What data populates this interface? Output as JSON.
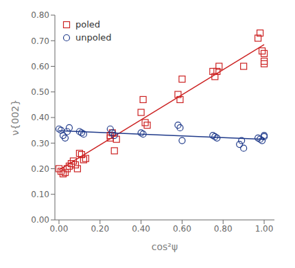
{
  "chart_data": {
    "type": "scatter",
    "xlabel": "cos²ψ",
    "ylabel": "ν{002}",
    "xlim": [
      -0.02,
      1.05
    ],
    "ylim": [
      0.0,
      0.8
    ],
    "xticks": [
      {
        "value": 0.0,
        "label": "0.00"
      },
      {
        "value": 0.2,
        "label": "0.20"
      },
      {
        "value": 0.4,
        "label": "0.40"
      },
      {
        "value": 0.6,
        "label": "0.60"
      },
      {
        "value": 0.8,
        "label": "0.80"
      },
      {
        "value": 1.0,
        "label": "1.00"
      }
    ],
    "yticks": [
      {
        "value": 0.0,
        "label": "0.00"
      },
      {
        "value": 0.1,
        "label": "0.10"
      },
      {
        "value": 0.2,
        "label": "0.20"
      },
      {
        "value": 0.3,
        "label": "0.30"
      },
      {
        "value": 0.4,
        "label": "0.40"
      },
      {
        "value": 0.5,
        "label": "0.50"
      },
      {
        "value": 0.6,
        "label": "0.60"
      },
      {
        "value": 0.7,
        "label": "0.70"
      },
      {
        "value": 0.8,
        "label": "0.80"
      }
    ],
    "grid": false,
    "legend": "upper left",
    "series": [
      {
        "type": "line",
        "color": "#CC2222",
        "x": [
          0.0,
          1.0
        ],
        "values": [
          0.195,
          0.685
        ]
      },
      {
        "type": "line",
        "color": "#1F3A8A",
        "x": [
          0.0,
          1.0
        ],
        "values": [
          0.348,
          0.315
        ]
      },
      {
        "type": "scatter",
        "name": "poled",
        "color": "#CC2222",
        "marker": "square",
        "x": [
          0.0,
          0.01,
          0.02,
          0.03,
          0.04,
          0.05,
          0.06,
          0.07,
          0.08,
          0.09,
          0.1,
          0.11,
          0.12,
          0.13,
          0.25,
          0.25,
          0.26,
          0.27,
          0.28,
          0.4,
          0.41,
          0.42,
          0.43,
          0.58,
          0.59,
          0.6,
          0.75,
          0.76,
          0.77,
          0.78,
          0.9,
          0.97,
          0.98,
          0.99,
          1.0,
          1.0,
          1.0
        ],
        "values": [
          0.2,
          0.19,
          0.18,
          0.185,
          0.2,
          0.21,
          0.22,
          0.23,
          0.215,
          0.2,
          0.26,
          0.255,
          0.235,
          0.24,
          0.32,
          0.33,
          0.34,
          0.27,
          0.315,
          0.42,
          0.47,
          0.38,
          0.37,
          0.49,
          0.47,
          0.55,
          0.58,
          0.56,
          0.58,
          0.6,
          0.6,
          0.71,
          0.73,
          0.66,
          0.65,
          0.62,
          0.61
        ]
      },
      {
        "type": "scatter",
        "name": "unpoled",
        "color": "#1F3A8A",
        "marker": "circle",
        "x": [
          0.0,
          0.01,
          0.02,
          0.03,
          0.04,
          0.05,
          0.1,
          0.11,
          0.12,
          0.25,
          0.26,
          0.27,
          0.4,
          0.41,
          0.58,
          0.59,
          0.6,
          0.75,
          0.76,
          0.77,
          0.88,
          0.89,
          0.9,
          0.97,
          0.98,
          0.99,
          1.0,
          1.0
        ],
        "values": [
          0.355,
          0.35,
          0.33,
          0.32,
          0.345,
          0.36,
          0.345,
          0.34,
          0.335,
          0.355,
          0.34,
          0.33,
          0.34,
          0.335,
          0.37,
          0.36,
          0.31,
          0.33,
          0.325,
          0.32,
          0.295,
          0.31,
          0.28,
          0.32,
          0.315,
          0.31,
          0.325,
          0.33
        ]
      }
    ]
  }
}
